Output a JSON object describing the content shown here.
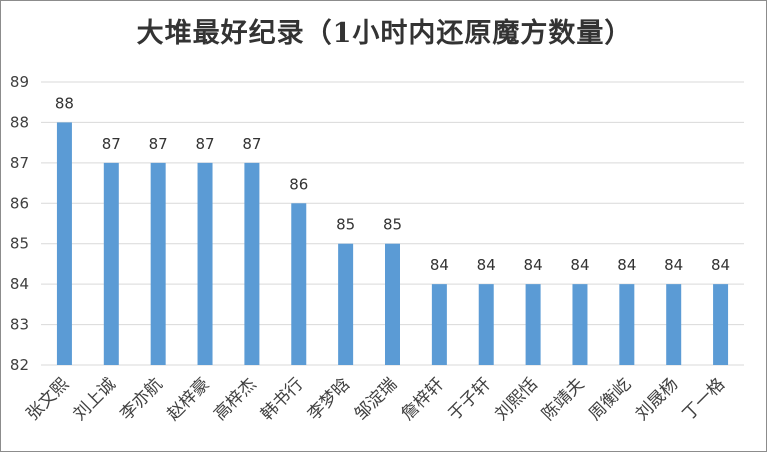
{
  "chart_data": {
    "type": "bar",
    "title": "大堆最好纪录（1小时内还原魔方数量）",
    "xlabel": "",
    "ylabel": "",
    "ylim": [
      82,
      89
    ],
    "yticks": [
      82,
      83,
      84,
      85,
      86,
      87,
      88,
      89
    ],
    "grid": true,
    "legend": "none",
    "bar_color": "#5b9bd5",
    "categories": [
      "张文熙",
      "刘上诚",
      "李亦航",
      "赵梓豪",
      "高梓杰",
      "韩书行",
      "李梦晗",
      "邹淀瑞",
      "詹梓轩",
      "于子轩",
      "刘熙恬",
      "陈靖夫",
      "周衡屹",
      "刘晟杨",
      "丁一格"
    ],
    "values": [
      88,
      87,
      87,
      87,
      87,
      86,
      85,
      85,
      84,
      84,
      84,
      84,
      84,
      84,
      84
    ]
  }
}
